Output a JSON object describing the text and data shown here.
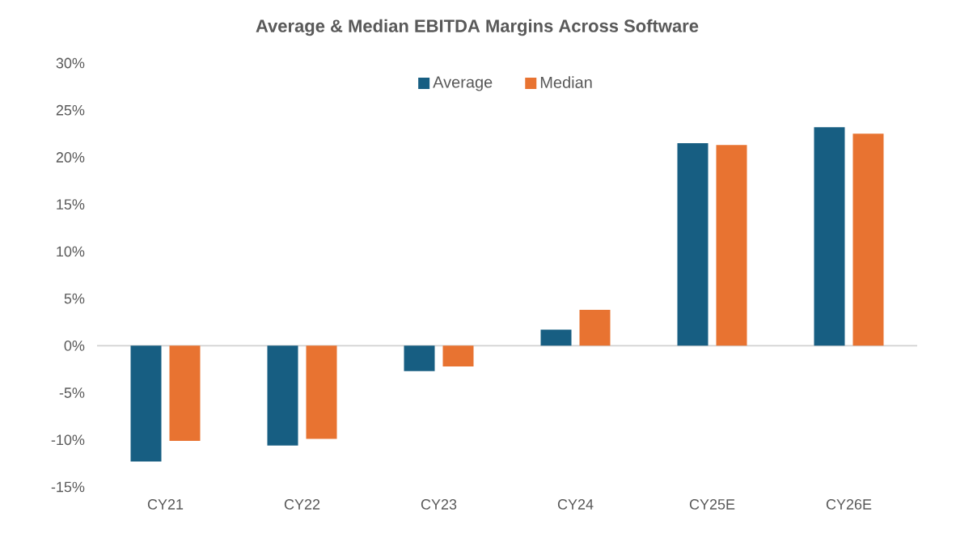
{
  "chart_data": {
    "type": "bar",
    "title": "Average & Median EBITDA Margins Across Software",
    "categories": [
      "CY21",
      "CY22",
      "CY23",
      "CY24",
      "CY25E",
      "CY26E"
    ],
    "series": [
      {
        "name": "Average",
        "color": "#175e82",
        "values": [
          -12.3,
          -10.6,
          -2.7,
          1.7,
          21.5,
          23.2
        ]
      },
      {
        "name": "Median",
        "color": "#e87331",
        "values": [
          -10.1,
          -9.9,
          -2.2,
          3.8,
          21.3,
          22.5
        ]
      }
    ],
    "ylim": [
      -15,
      30
    ],
    "yticks": [
      {
        "value": -15,
        "label": "-15%"
      },
      {
        "value": -10,
        "label": "-10%"
      },
      {
        "value": -5,
        "label": "-5%"
      },
      {
        "value": 0,
        "label": "0%"
      },
      {
        "value": 5,
        "label": "5%"
      },
      {
        "value": 10,
        "label": "10%"
      },
      {
        "value": 15,
        "label": "15%"
      },
      {
        "value": 20,
        "label": "20%"
      },
      {
        "value": 25,
        "label": "25%"
      },
      {
        "value": 30,
        "label": "30%"
      }
    ],
    "legend": "top"
  }
}
